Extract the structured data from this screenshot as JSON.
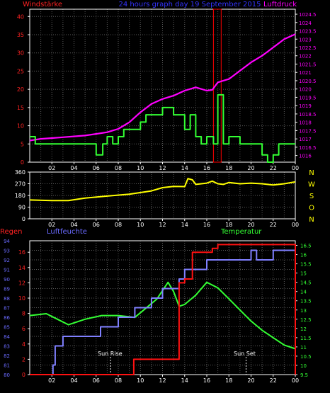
{
  "header": {
    "left_label": "Windstärke",
    "title": "24 hours graph day  19 September 2015",
    "right_label": "Luftdruck"
  },
  "colors": {
    "background": "#000000",
    "frame": "#ffffff",
    "grid": "#5a5a5a",
    "wind": "#33ff33",
    "pressure": "#ff00ff",
    "direction": "#ffff00",
    "rain": "#ff1111",
    "humidity": "#8080ff",
    "temperature": "#33ff33",
    "title": "#3333ff",
    "windlabel": "#ff2222",
    "pressurelabel": "#ff00ff",
    "compass": "#ffff00",
    "rainlabel": "#ff2222",
    "humiditylabel": "#6a6aff",
    "templabel": "#33ff33",
    "sunline": "#ffffff"
  },
  "x_ticks": [
    "02",
    "04",
    "06",
    "08",
    "10",
    "12",
    "14",
    "16",
    "18",
    "20",
    "22",
    "00"
  ],
  "chart_data": [
    {
      "type": "line",
      "panel": "wind_pressure",
      "x_unit": "hour",
      "x_range": [
        0,
        24
      ],
      "left_axis": {
        "label": "Windstärke",
        "ylim": [
          0,
          42
        ],
        "ticks": [
          "0",
          "5",
          "10",
          "15",
          "20",
          "25",
          "30",
          "35",
          "40"
        ],
        "tick_values": [
          0,
          5,
          10,
          15,
          20,
          25,
          30,
          35,
          40
        ]
      },
      "right_axis": {
        "label": "Luftdruck",
        "ylim": [
          1015.6,
          1024.8
        ],
        "ticks": [
          "1016",
          "1016.5",
          "1017",
          "1017.5",
          "1018",
          "1018.5",
          "1019",
          "1019.5",
          "1020",
          "1020.5",
          "1021",
          "1021.5",
          "1022",
          "1022.5",
          "1023",
          "1023.5",
          "1024",
          "1024.5"
        ],
        "tick_values": [
          1016,
          1016.5,
          1017,
          1017.5,
          1018,
          1018.5,
          1019,
          1019.5,
          1020,
          1020.5,
          1021,
          1021.5,
          1022,
          1022.5,
          1023,
          1023.5,
          1024,
          1024.5
        ]
      },
      "series": [
        {
          "axis": "left",
          "step": true,
          "x": [
            0,
            0.5,
            6.0,
            6.6,
            7.0,
            7.5,
            8.0,
            8.5,
            9.0,
            10.0,
            10.5,
            11.0,
            12.0,
            13.0,
            14.0,
            14.5,
            15.0,
            15.5,
            16.0,
            16.6,
            17.0,
            17.5,
            18.0,
            19.0,
            21.0,
            21.5,
            22.0,
            22.5,
            23.0,
            24.0
          ],
          "y": [
            7,
            5,
            2,
            5,
            7,
            5,
            7,
            9,
            9,
            11,
            13,
            13,
            15,
            13,
            9,
            13,
            7,
            5,
            7,
            5,
            18.5,
            5,
            7,
            5,
            2,
            0,
            2,
            5,
            5,
            5
          ]
        },
        {
          "axis": "right",
          "x": [
            0,
            1,
            2,
            3,
            4,
            5,
            6,
            7,
            8,
            9,
            10,
            11,
            12,
            13,
            14,
            15,
            16,
            16.5,
            17,
            18,
            19,
            20,
            21,
            22,
            23,
            24
          ],
          "y": [
            1016.9,
            1017.0,
            1017.05,
            1017.1,
            1017.15,
            1017.2,
            1017.3,
            1017.4,
            1017.6,
            1018.0,
            1018.6,
            1019.1,
            1019.4,
            1019.6,
            1019.9,
            1020.1,
            1019.9,
            1019.95,
            1020.4,
            1020.6,
            1021.1,
            1021.6,
            1022.0,
            1022.5,
            1023.0,
            1023.3
          ]
        }
      ],
      "highlight_window_hours": [
        16.6,
        17.3
      ]
    },
    {
      "type": "line",
      "panel": "wind_direction",
      "x_unit": "hour",
      "x_range": [
        0,
        24
      ],
      "ylim": [
        0,
        360
      ],
      "ticks": [
        "0",
        "90",
        "180",
        "270",
        "360"
      ],
      "tick_values": [
        0,
        90,
        180,
        270,
        360
      ],
      "compass_labels": [
        "N",
        "W",
        "S",
        "O",
        "N"
      ],
      "series": [
        {
          "x": [
            0,
            2,
            3.5,
            5,
            7,
            9,
            11,
            12,
            13,
            14,
            14.3,
            14.7,
            15,
            16,
            16.5,
            17,
            17.5,
            18,
            19,
            20,
            21,
            22,
            23,
            24
          ],
          "y": [
            145,
            140,
            140,
            160,
            175,
            190,
            215,
            240,
            250,
            248,
            310,
            300,
            265,
            275,
            290,
            270,
            265,
            280,
            270,
            275,
            270,
            260,
            270,
            285
          ]
        }
      ]
    },
    {
      "type": "line",
      "panel": "rain_humidity_temperature",
      "x_unit": "hour",
      "x_range": [
        0,
        24
      ],
      "rain_axis": {
        "label": "Regen",
        "ylim": [
          0,
          17.5
        ],
        "ticks": [
          "0",
          "2",
          "4",
          "6",
          "8",
          "10",
          "12",
          "14",
          "16"
        ],
        "tick_values": [
          0,
          2,
          4,
          6,
          8,
          10,
          12,
          14,
          16
        ]
      },
      "humidity_axis": {
        "label": "Luftfeuchte",
        "ylim": [
          80,
          94
        ],
        "ticks": [
          "80",
          "81",
          "82",
          "83",
          "84",
          "85",
          "86",
          "87",
          "88",
          "89",
          "90",
          "91",
          "92",
          "93",
          "94"
        ],
        "tick_values": [
          80,
          81,
          82,
          83,
          84,
          85,
          86,
          87,
          88,
          89,
          90,
          91,
          92,
          93,
          94
        ]
      },
      "temperature_axis": {
        "label": "Temperatur",
        "ylim": [
          9.5,
          16.75
        ],
        "ticks": [
          "9.5",
          "10",
          "10.5",
          "11",
          "11.5",
          "12",
          "12.5",
          "13",
          "13.5",
          "14",
          "14.5",
          "15",
          "15.5",
          "16",
          "16.5"
        ],
        "tick_values": [
          9.5,
          10,
          10.5,
          11,
          11.5,
          12,
          12.5,
          13,
          13.5,
          14,
          14.5,
          15,
          15.5,
          16,
          16.5
        ]
      },
      "series": [
        {
          "axis": "rain",
          "step": true,
          "x": [
            0,
            9.0,
            9.4,
            13.3,
            13.5,
            14.0,
            14.7,
            16.5,
            17.0,
            20.0,
            24.0
          ],
          "y": [
            0,
            0,
            2,
            2,
            12,
            12.5,
            16,
            16.5,
            17,
            17,
            0
          ]
        },
        {
          "axis": "humidity",
          "step": true,
          "x": [
            0,
            2.1,
            2.3,
            3.0,
            6.0,
            6.4,
            6.9,
            8.0,
            9.0,
            9.5,
            10.0,
            11.0,
            12.0,
            13.0,
            13.5,
            14.0,
            15.0,
            16.0,
            18.0,
            19.5,
            20.0,
            20.5,
            21.0,
            22.0,
            24.0
          ],
          "y": [
            80,
            81,
            83,
            84,
            84,
            85,
            85,
            86,
            86,
            87,
            87,
            88,
            89,
            89,
            90,
            91,
            91,
            92,
            92,
            92,
            93,
            92,
            92,
            93,
            93
          ]
        },
        {
          "axis": "temperature",
          "x": [
            0,
            1.5,
            2.5,
            3.5,
            5,
            6.5,
            8,
            9.5,
            10.5,
            11.5,
            12.5,
            13,
            13.5,
            14,
            15,
            16,
            17,
            18,
            19,
            20,
            21,
            22,
            23,
            24
          ],
          "y": [
            12.7,
            12.8,
            12.5,
            12.2,
            12.5,
            12.7,
            12.7,
            12.6,
            13.1,
            13.6,
            14.5,
            14.0,
            13.2,
            13.3,
            13.8,
            14.5,
            14.2,
            13.6,
            13.0,
            12.4,
            11.9,
            11.5,
            11.1,
            10.9
          ]
        }
      ],
      "sun_rise": {
        "label": "Sun Rise",
        "hour": 7.3
      },
      "sun_set": {
        "label": "Sun Set",
        "hour": 19.55
      }
    }
  ]
}
